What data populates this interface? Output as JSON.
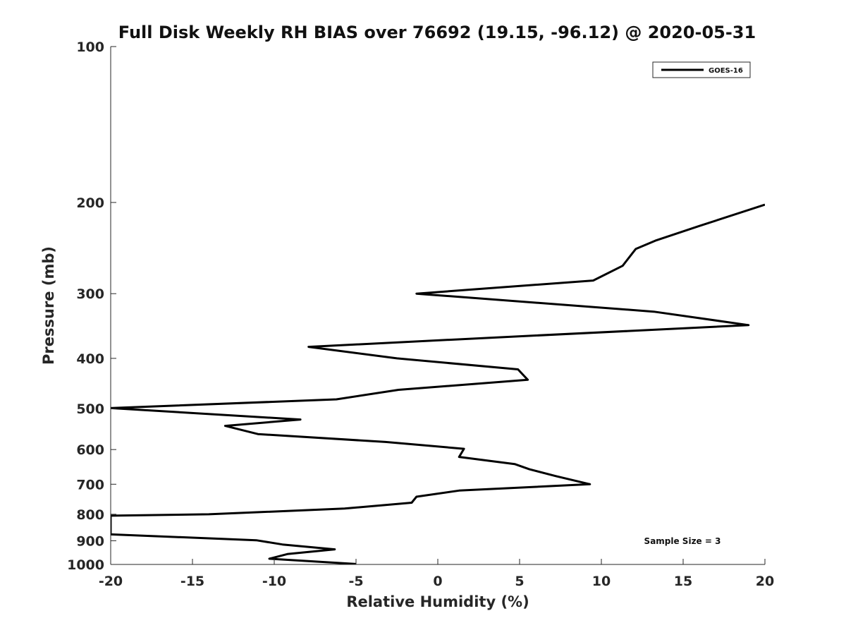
{
  "chart_data": {
    "type": "line",
    "title": "Full Disk Weekly RH BIAS over 76692 (19.15, -96.12) @ 2020-05-31",
    "xlabel": "Relative Humidity (%)",
    "ylabel": "Pressure (mb)",
    "xlim": [
      -20,
      20
    ],
    "ylim": [
      100,
      1000
    ],
    "y_scale": "log",
    "y_reversed": true,
    "x_ticks": [
      "-20",
      "-15",
      "-10",
      "-5",
      "0",
      "5",
      "10",
      "15",
      "20"
    ],
    "y_ticks": [
      "100",
      "200",
      "300",
      "400",
      "500",
      "600",
      "700",
      "800",
      "900",
      "1000"
    ],
    "grid": false,
    "legend_position": "top-right",
    "annotation": "Sample Size = 3",
    "series": [
      {
        "name": "GOES-16",
        "color": "#000000",
        "x": [
          20,
          16,
          13.3,
          12.1,
          11.3,
          9.5,
          -1.3,
          13.2,
          19,
          3.2,
          -7.9,
          -2.5,
          4.9,
          5.5,
          -2.4,
          -6.2,
          -20,
          -8.4,
          -13,
          -11,
          -3.2,
          1.6,
          1.3,
          4.7,
          5.6,
          7.2,
          9.3,
          1.3,
          -1.3,
          -1.6,
          -5.7,
          -14,
          -20,
          -20,
          -11.1,
          -9.5,
          -6.3,
          -9.2,
          -10.3,
          -5
        ],
        "y": [
          202,
          222,
          237,
          246,
          265,
          283,
          300,
          325,
          345,
          365,
          380,
          400,
          420,
          440,
          460,
          480,
          499,
          525,
          540,
          560,
          580,
          598,
          620,
          640,
          655,
          675,
          700,
          720,
          740,
          760,
          780,
          800,
          805,
          875,
          898,
          915,
          935,
          955,
          975,
          998
        ]
      }
    ]
  }
}
